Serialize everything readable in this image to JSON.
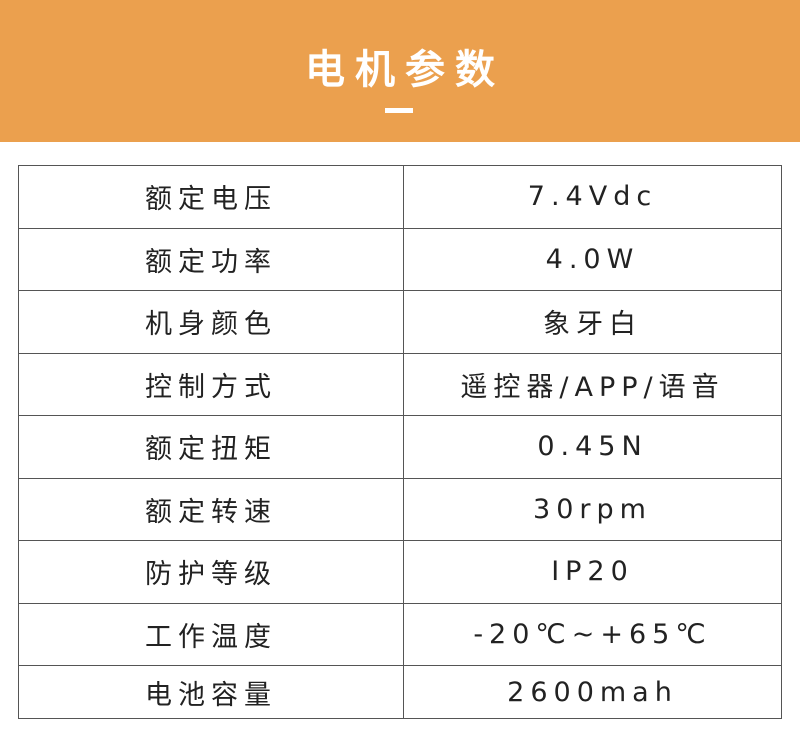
{
  "header": {
    "title": "电机参数",
    "accent_color": "#eba04e"
  },
  "specs": [
    {
      "label": "额定电压",
      "value": "7.4Vdc"
    },
    {
      "label": "额定功率",
      "value": "4.0W"
    },
    {
      "label": "机身颜色",
      "value": "象牙白"
    },
    {
      "label": "控制方式",
      "value": "遥控器/APP/语音"
    },
    {
      "label": "额定扭矩",
      "value": "0.45N"
    },
    {
      "label": "额定转速",
      "value": "30rpm"
    },
    {
      "label": "防护等级",
      "value": "IP20"
    },
    {
      "label": "工作温度",
      "value": "-20℃~+65℃"
    },
    {
      "label": "电池容量",
      "value": "2600mah"
    }
  ]
}
